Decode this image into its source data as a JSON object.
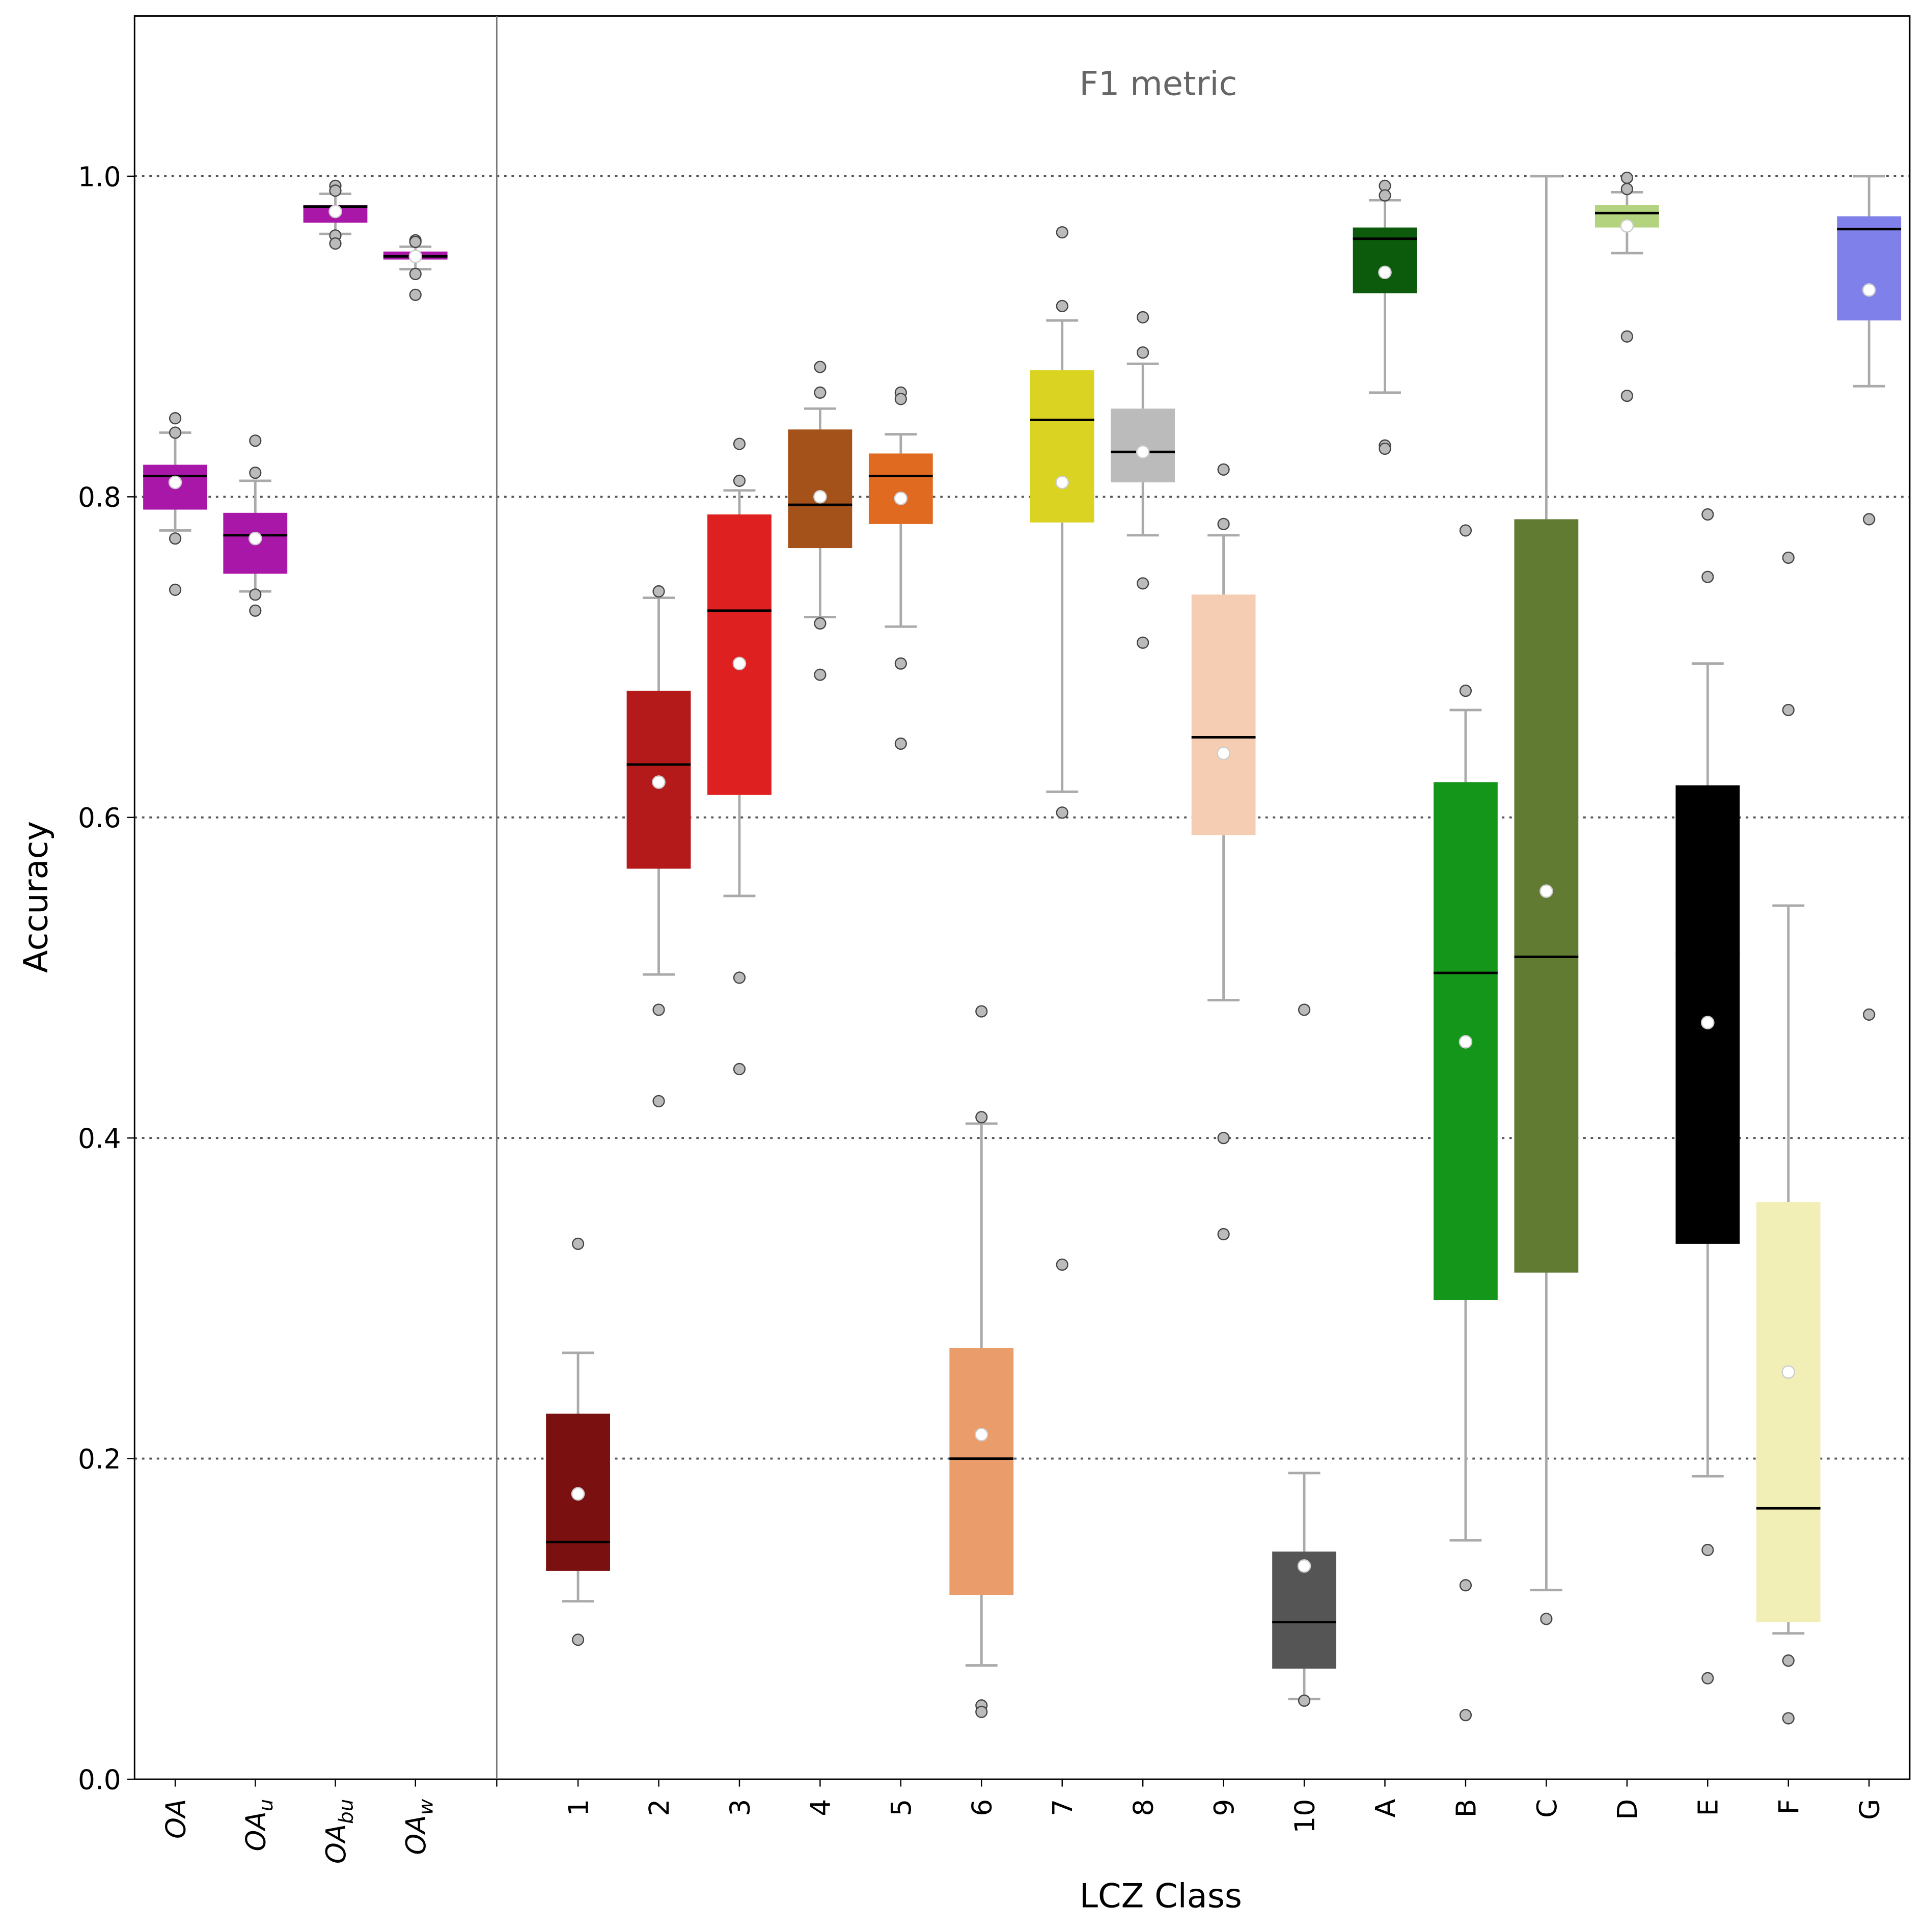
{
  "chart_data": {
    "type": "box",
    "annotation": "F1 metric",
    "xlabel": "LCZ Class",
    "ylabel": "Accuracy",
    "ylim": [
      0,
      1.1
    ],
    "yticks": [
      "0.0",
      "0.2",
      "0.4",
      "0.6",
      "0.8",
      "1.0"
    ],
    "grid": "horizontal dotted at 0.2 steps",
    "overall_groups": [
      {
        "label": "OA",
        "sub": "",
        "color": "#a817a8",
        "q1": 0.792,
        "median": 0.813,
        "q3": 0.82,
        "mean": 0.809,
        "whislo": 0.779,
        "whishi": 0.84,
        "fliers": [
          0.849,
          0.84,
          0.774,
          0.742
        ]
      },
      {
        "label": "OA",
        "sub": "u",
        "color": "#a817a8",
        "q1": 0.752,
        "median": 0.776,
        "q3": 0.79,
        "mean": 0.774,
        "whislo": 0.741,
        "whishi": 0.81,
        "fliers": [
          0.835,
          0.815,
          0.739,
          0.729
        ]
      },
      {
        "label": "OA",
        "sub": "bu",
        "color": "#a817a8",
        "q1": 0.971,
        "median": 0.981,
        "q3": 0.982,
        "mean": 0.978,
        "whislo": 0.964,
        "whishi": 0.989,
        "fliers": [
          0.994,
          0.991,
          0.963,
          0.958
        ]
      },
      {
        "label": "OA",
        "sub": "w",
        "color": "#a817a8",
        "q1": 0.948,
        "median": 0.95,
        "q3": 0.953,
        "mean": 0.95,
        "whislo": 0.942,
        "whishi": 0.956,
        "fliers": [
          0.96,
          0.959,
          0.939,
          0.926
        ]
      }
    ],
    "classes": [
      {
        "label": "1",
        "color": "#7a1010",
        "q1": 0.13,
        "median": 0.148,
        "q3": 0.228,
        "mean": 0.178,
        "whislo": 0.111,
        "whishi": 0.266,
        "fliers": [
          0.334,
          0.087
        ]
      },
      {
        "label": "2",
        "color": "#b41a1a",
        "q1": 0.568,
        "median": 0.633,
        "q3": 0.679,
        "mean": 0.622,
        "whislo": 0.502,
        "whishi": 0.737,
        "fliers": [
          0.741,
          0.48,
          0.423
        ]
      },
      {
        "label": "3",
        "color": "#de2020",
        "q1": 0.614,
        "median": 0.729,
        "q3": 0.789,
        "mean": 0.696,
        "whislo": 0.551,
        "whishi": 0.804,
        "fliers": [
          0.833,
          0.81,
          0.5,
          0.443
        ]
      },
      {
        "label": "4",
        "color": "#a5521a",
        "q1": 0.768,
        "median": 0.795,
        "q3": 0.842,
        "mean": 0.8,
        "whislo": 0.725,
        "whishi": 0.855,
        "fliers": [
          0.881,
          0.865,
          0.721,
          0.689
        ]
      },
      {
        "label": "5",
        "color": "#e06a20",
        "q1": 0.783,
        "median": 0.813,
        "q3": 0.827,
        "mean": 0.799,
        "whislo": 0.719,
        "whishi": 0.839,
        "fliers": [
          0.865,
          0.861,
          0.696,
          0.646
        ]
      },
      {
        "label": "6",
        "color": "#ea9c6a",
        "q1": 0.115,
        "median": 0.2,
        "q3": 0.269,
        "mean": 0.215,
        "whislo": 0.071,
        "whishi": 0.409,
        "fliers": [
          0.479,
          0.413,
          0.046,
          0.042
        ]
      },
      {
        "label": "7",
        "color": "#dbd322",
        "q1": 0.784,
        "median": 0.848,
        "q3": 0.879,
        "mean": 0.809,
        "whislo": 0.616,
        "whishi": 0.91,
        "fliers": [
          0.965,
          0.919,
          0.603,
          0.321
        ]
      },
      {
        "label": "8",
        "color": "#bbbbbb",
        "q1": 0.809,
        "median": 0.828,
        "q3": 0.855,
        "mean": 0.828,
        "whislo": 0.776,
        "whishi": 0.883,
        "fliers": [
          0.912,
          0.89,
          0.746,
          0.709
        ]
      },
      {
        "label": "9",
        "color": "#f5cdb2",
        "q1": 0.589,
        "median": 0.65,
        "q3": 0.739,
        "mean": 0.64,
        "whislo": 0.486,
        "whishi": 0.776,
        "fliers": [
          0.817,
          0.783,
          0.4,
          0.34
        ]
      },
      {
        "label": "10",
        "color": "#555555",
        "q1": 0.069,
        "median": 0.098,
        "q3": 0.142,
        "mean": 0.133,
        "whislo": 0.05,
        "whishi": 0.191,
        "fliers": [
          0.48,
          0.049
        ]
      },
      {
        "label": "A",
        "color": "#0c5a0c",
        "q1": 0.927,
        "median": 0.961,
        "q3": 0.968,
        "mean": 0.94,
        "whislo": 0.865,
        "whishi": 0.985,
        "fliers": [
          0.994,
          0.988,
          0.832,
          0.83
        ]
      },
      {
        "label": "B",
        "color": "#14961a",
        "q1": 0.299,
        "median": 0.503,
        "q3": 0.622,
        "mean": 0.46,
        "whislo": 0.149,
        "whishi": 0.667,
        "fliers": [
          0.779,
          0.679,
          0.121,
          0.04
        ]
      },
      {
        "label": "C",
        "color": "#617b32",
        "q1": 0.316,
        "median": 0.513,
        "q3": 0.786,
        "mean": 0.554,
        "whislo": 0.118,
        "whishi": 1.0,
        "fliers": [
          0.1
        ]
      },
      {
        "label": "D",
        "color": "#b4d37e",
        "q1": 0.968,
        "median": 0.977,
        "q3": 0.982,
        "mean": 0.969,
        "whislo": 0.952,
        "whishi": 0.99,
        "fliers": [
          0.999,
          0.992,
          0.9,
          0.863
        ]
      },
      {
        "label": "E",
        "color": "#000000",
        "q1": 0.334,
        "median": 0.515,
        "q3": 0.62,
        "mean": 0.472,
        "whislo": 0.189,
        "whishi": 0.696,
        "fliers": [
          0.789,
          0.75,
          0.143,
          0.063
        ]
      },
      {
        "label": "F",
        "color": "#f2efb6",
        "q1": 0.098,
        "median": 0.169,
        "q3": 0.36,
        "mean": 0.254,
        "whislo": 0.091,
        "whishi": 0.545,
        "fliers": [
          0.762,
          0.667,
          0.074,
          0.038
        ]
      },
      {
        "label": "G",
        "color": "#8080ea",
        "q1": 0.91,
        "median": 0.967,
        "q3": 0.975,
        "mean": 0.929,
        "whislo": 0.869,
        "whishi": 1.0,
        "fliers": [
          0.786,
          0.477
        ]
      }
    ]
  }
}
